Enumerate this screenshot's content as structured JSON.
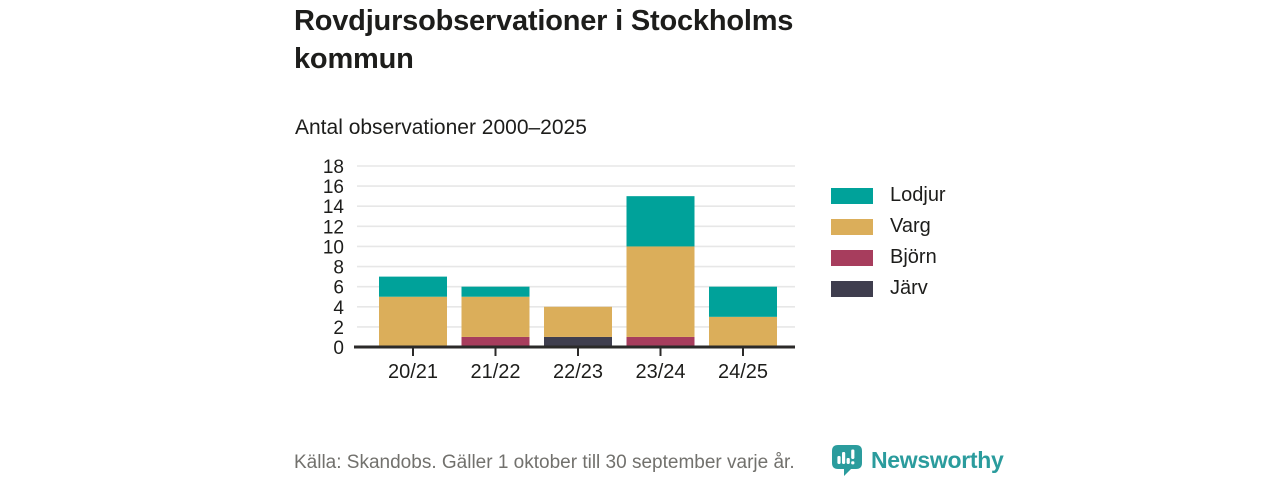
{
  "header": {
    "title": "Rovdjursobservationer i Stockholms kommun",
    "subtitle": "Antal observationer 2000–2025"
  },
  "chart_data": {
    "type": "bar",
    "stacked": true,
    "title": "Rovdjursobservationer i Stockholms kommun",
    "subtitle": "Antal observationer 2000–2025",
    "categories": [
      "20/21",
      "21/22",
      "22/23",
      "23/24",
      "24/25"
    ],
    "series": [
      {
        "name": "Järv",
        "color": "#3f3e4e",
        "values": [
          0,
          0,
          1,
          0,
          0
        ]
      },
      {
        "name": "Björn",
        "color": "#a73d5d",
        "values": [
          0,
          1,
          0,
          1,
          0
        ]
      },
      {
        "name": "Varg",
        "color": "#dbae5a",
        "values": [
          5,
          4,
          3,
          9,
          3
        ]
      },
      {
        "name": "Lodjur",
        "color": "#00a29a",
        "values": [
          2,
          1,
          0,
          5,
          3
        ]
      }
    ],
    "stack_order": "bottom-to-top",
    "legend_position": "right",
    "legend_order": [
      "Lodjur",
      "Varg",
      "Björn",
      "Järv"
    ],
    "ylim": [
      0,
      18
    ],
    "yticks": [
      0,
      2,
      4,
      6,
      8,
      10,
      12,
      14,
      16,
      18
    ],
    "grid": true
  },
  "footer": {
    "source": "Källa: Skandobs. Gäller 1 oktober till 30 september varje år.",
    "brand": "Newsworthy"
  },
  "colors": {
    "title_text": "#1d1d1b",
    "muted_text": "#72716d",
    "axis": "#2b2a29",
    "gridline": "#e7e7e7",
    "brand_teal": "#2b9c9d",
    "background": "#ffffff"
  }
}
